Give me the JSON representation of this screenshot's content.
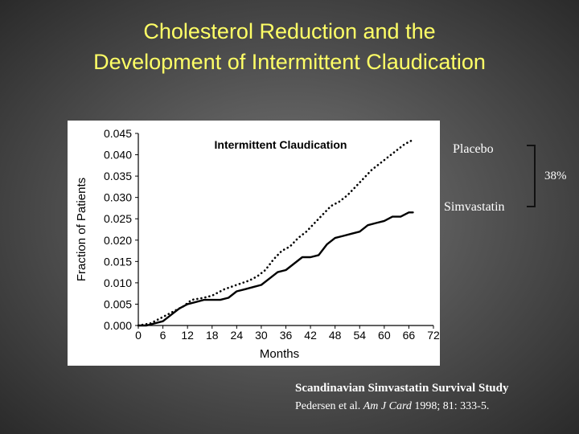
{
  "slide": {
    "title_line1": "Cholesterol Reduction and the",
    "title_line2": "Development of Intermittent Claudication",
    "annotation_placebo": "Placebo",
    "annotation_simvastatin": "Simvastatin",
    "annotation_reduction": "38%",
    "citation_study": "Scandinavian Simvastatin Survival Study",
    "citation_ref_prefix": "Pedersen et al. ",
    "citation_journal": "Am J Card",
    "citation_ref_suffix": " 1998; 81: 333-5.",
    "colors": {
      "title": "#ffff66",
      "text": "#ffffff",
      "chart_bg": "#ffffff",
      "lines": "#000000"
    }
  },
  "chart_data": {
    "type": "line",
    "title": "Intermittent Claudication",
    "xlabel": "Months",
    "ylabel": "Fraction of Patients",
    "xlim": [
      0,
      72
    ],
    "ylim": [
      0,
      0.045
    ],
    "xticks": [
      "0",
      "6",
      "12",
      "18",
      "24",
      "30",
      "36",
      "42",
      "48",
      "54",
      "60",
      "66",
      "72"
    ],
    "yticks": [
      "0.000",
      "0.005",
      "0.010",
      "0.015",
      "0.020",
      "0.025",
      "0.030",
      "0.035",
      "0.040",
      "0.045"
    ],
    "grid": false,
    "series": [
      {
        "name": "Placebo",
        "style": "dotted",
        "x": [
          0,
          3,
          5,
          7,
          9,
          11,
          13,
          16,
          18,
          21,
          24,
          27,
          29,
          31,
          33,
          35,
          37,
          39,
          41,
          43,
          45,
          47,
          49,
          51,
          53,
          55,
          57,
          59,
          61,
          63,
          65,
          67
        ],
        "y": [
          0.0,
          0.0005,
          0.0015,
          0.0025,
          0.0035,
          0.0045,
          0.006,
          0.0065,
          0.007,
          0.0085,
          0.0095,
          0.0105,
          0.0115,
          0.013,
          0.0155,
          0.0175,
          0.0185,
          0.0205,
          0.022,
          0.024,
          0.026,
          0.028,
          0.029,
          0.0305,
          0.0325,
          0.0345,
          0.0365,
          0.038,
          0.0395,
          0.041,
          0.0425,
          0.0435
        ]
      },
      {
        "name": "Simvastatin",
        "style": "solid",
        "x": [
          0,
          2,
          4,
          6,
          8,
          10,
          12,
          14,
          16,
          18,
          20,
          22,
          24,
          26,
          28,
          30,
          32,
          34,
          36,
          38,
          40,
          42,
          44,
          46,
          48,
          50,
          52,
          54,
          56,
          58,
          60,
          62,
          64,
          66,
          67
        ],
        "y": [
          0.0,
          0.0,
          0.0005,
          0.001,
          0.0025,
          0.004,
          0.005,
          0.0055,
          0.006,
          0.006,
          0.006,
          0.0065,
          0.008,
          0.0085,
          0.009,
          0.0095,
          0.011,
          0.0125,
          0.013,
          0.0145,
          0.016,
          0.016,
          0.0165,
          0.019,
          0.0205,
          0.021,
          0.0215,
          0.022,
          0.0235,
          0.024,
          0.0245,
          0.0255,
          0.0255,
          0.0265,
          0.0265
        ]
      }
    ]
  }
}
